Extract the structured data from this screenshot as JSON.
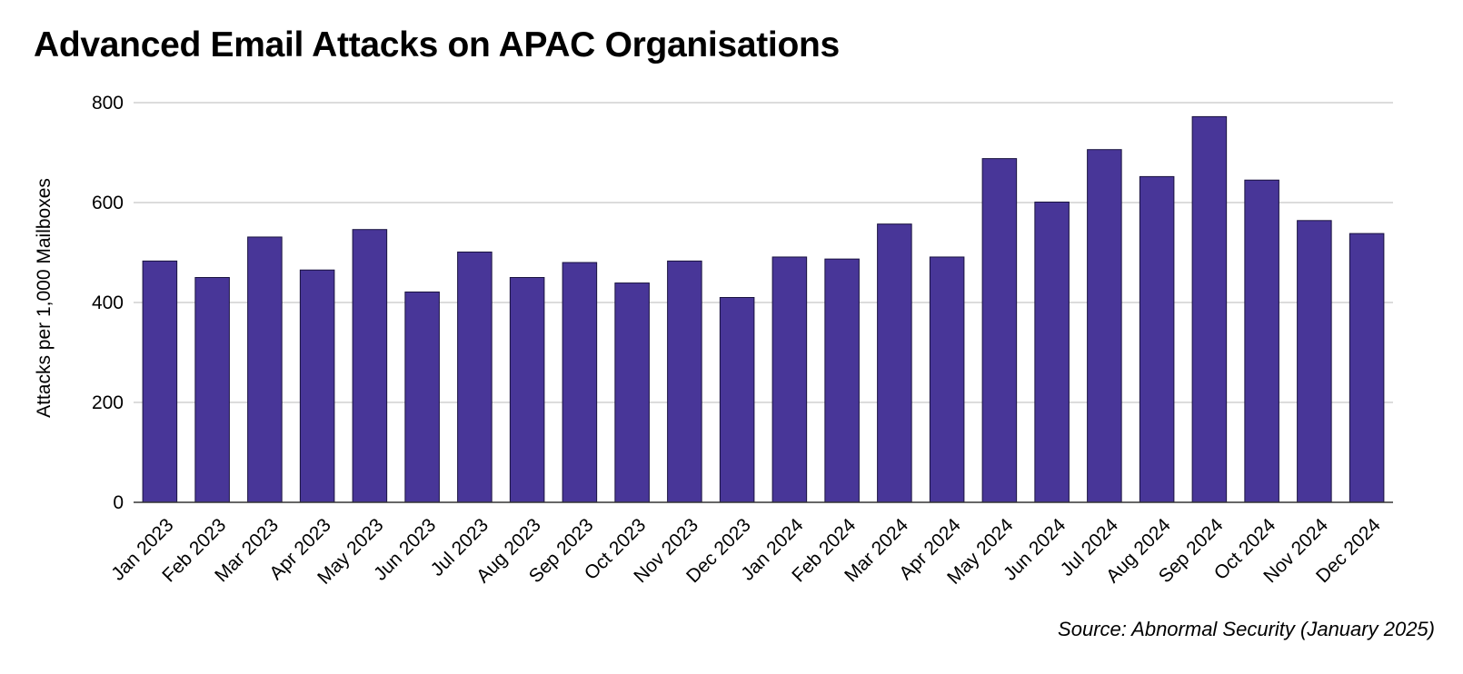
{
  "chart_data": {
    "type": "bar",
    "title": "Advanced Email Attacks on APAC Organisations",
    "ylabel": "Attacks per 1,000 Mailboxes",
    "xlabel": "",
    "ylim": [
      0,
      800
    ],
    "yticks": [
      0,
      200,
      400,
      600,
      800
    ],
    "grid": true,
    "legend": "none",
    "bar_color": "#483698",
    "categories": [
      "Jan 2023",
      "Feb 2023",
      "Mar 2023",
      "Apr 2023",
      "May 2023",
      "Jun 2023",
      "Jul 2023",
      "Aug 2023",
      "Sep 2023",
      "Oct 2023",
      "Nov 2023",
      "Dec 2023",
      "Jan 2024",
      "Feb 2024",
      "Mar 2024",
      "Apr 2024",
      "May 2024",
      "Jun 2024",
      "Jul 2024",
      "Aug 2024",
      "Sep 2024",
      "Oct 2024",
      "Nov 2024",
      "Dec 2024"
    ],
    "values": [
      483,
      450,
      531,
      465,
      546,
      421,
      501,
      450,
      480,
      439,
      483,
      410,
      491,
      487,
      557,
      491,
      688,
      601,
      706,
      652,
      772,
      645,
      564,
      538
    ]
  },
  "footer": {
    "source": "Source: Abnormal Security (January 2025)"
  }
}
